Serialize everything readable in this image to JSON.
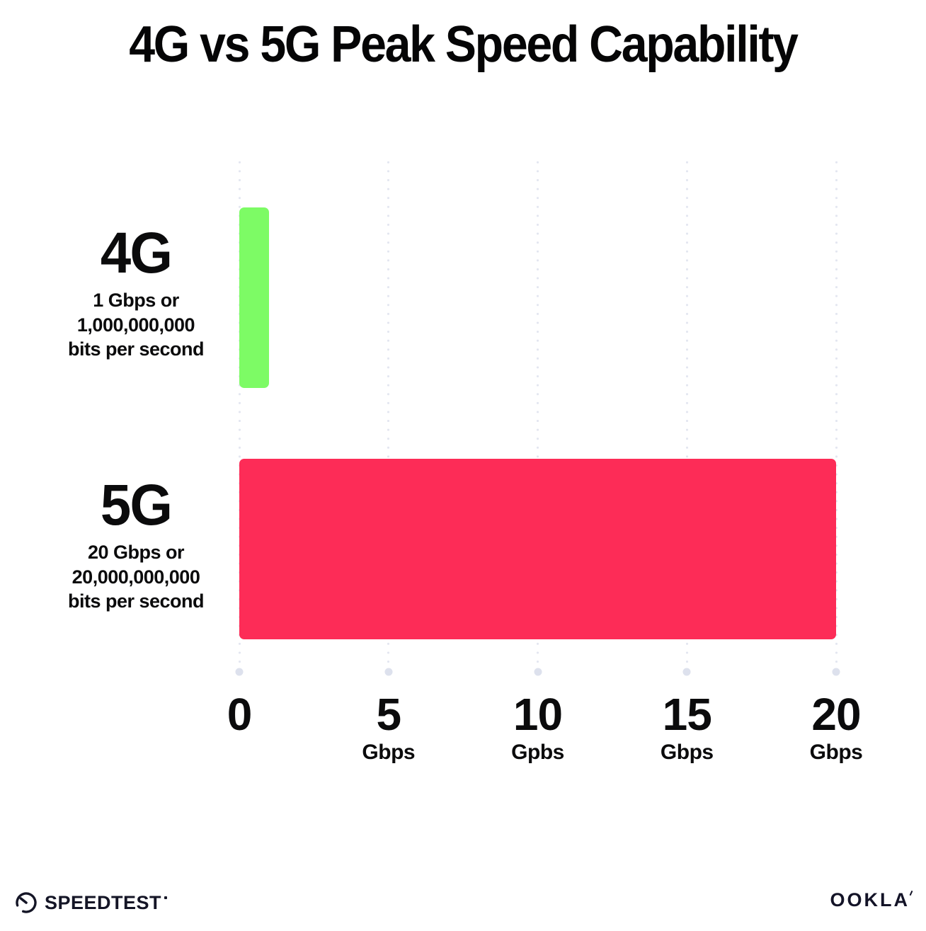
{
  "title": "4G vs 5G Peak Speed Capability",
  "chart_data": {
    "type": "bar",
    "orientation": "horizontal",
    "title": "4G vs 5G Peak Speed Capability",
    "categories": [
      "4G",
      "5G"
    ],
    "values": [
      1,
      20
    ],
    "unit": "Gbps",
    "xlim": [
      0,
      20
    ],
    "grid": "vertical-dotted",
    "legend": "none",
    "bars": [
      {
        "label": "4G",
        "value": 1,
        "color": "#7DFB65",
        "sublabel_lines": [
          "1 Gbps or",
          "1,000,000,000",
          "bits per second"
        ]
      },
      {
        "label": "5G",
        "value": 20,
        "color": "#FD2C57",
        "sublabel_lines": [
          "20 Gbps or",
          "20,000,000,000",
          "bits per second"
        ]
      }
    ],
    "x_ticks": [
      {
        "value": 0,
        "label": "0",
        "unit": ""
      },
      {
        "value": 5,
        "label": "5",
        "unit": "Gbps"
      },
      {
        "value": 10,
        "label": "10",
        "unit": "Gpbs"
      },
      {
        "value": 15,
        "label": "15",
        "unit": "Gbps"
      },
      {
        "value": 20,
        "label": "20",
        "unit": "Gbps"
      }
    ]
  },
  "footer": {
    "speedtest_label": "SPEEDTEST",
    "ookla_label": "OOKLA"
  },
  "colors": {
    "bar_4g": "#7DFB65",
    "bar_5g": "#FD2C57",
    "grid_dot": "#E3E6F0",
    "grid_end_dot": "#DDE1ED",
    "text": "#0B0B0C",
    "background": "#FFFFFF"
  }
}
